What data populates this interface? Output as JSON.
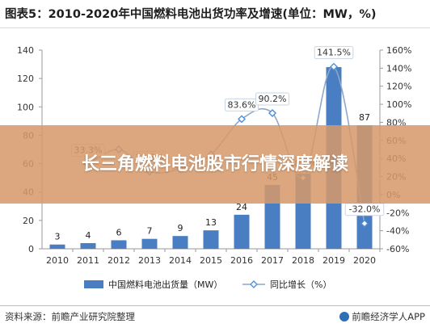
{
  "header": {
    "title": "图表5：2010-2020年中国燃料电池出货功率及增速(单位：MW，%)"
  },
  "overlay": {
    "banner_text": "长三角燃料电池股市行情深度解读"
  },
  "footer": {
    "source": "资料来源：前瞻产业研究院整理",
    "brand": "前瞻经济学人APP"
  },
  "chart_data": {
    "type": "bar",
    "categories": [
      "2010",
      "2011",
      "2012",
      "2013",
      "2014",
      "2015",
      "2016",
      "2017",
      "2018",
      "2019",
      "2020"
    ],
    "series": [
      {
        "name": "中国燃料电池出货量（MW）",
        "type": "bar",
        "axis": "left",
        "color": "#4a7ec2",
        "values": [
          3,
          4,
          6,
          7,
          9,
          13,
          24,
          45,
          53,
          128,
          87
        ],
        "labels": [
          "3",
          "4",
          "6",
          "7",
          "9",
          "13",
          "24",
          "45",
          "",
          "",
          ""
        ]
      },
      {
        "name": "同比增长（%）",
        "type": "line",
        "axis": "right",
        "color": "#8fa7c9",
        "marker_color": "#4a90d9",
        "values": [
          null,
          33.3,
          50.0,
          25.5,
          28.6,
          44.4,
          83.6,
          90.2,
          18.6,
          141.5,
          -32.0
        ],
        "labels": [
          "",
          "33.3%",
          "",
          "25.5%",
          "",
          "",
          "83.6%",
          "90.2%",
          "18.6%",
          "141.5%",
          "-32.0%"
        ]
      }
    ],
    "extra_bar_labels": {
      "10": "87"
    },
    "y_left": {
      "min": 0,
      "max": 140,
      "ticks": [
        0,
        20,
        40,
        60,
        80,
        100,
        120,
        140
      ]
    },
    "y_right": {
      "min": -60,
      "max": 160,
      "ticks": [
        -60,
        -40,
        -20,
        0,
        20,
        40,
        60,
        80,
        100,
        120,
        140,
        160
      ],
      "tick_suffix": "%"
    },
    "grid": false,
    "legend_position": "bottom"
  }
}
